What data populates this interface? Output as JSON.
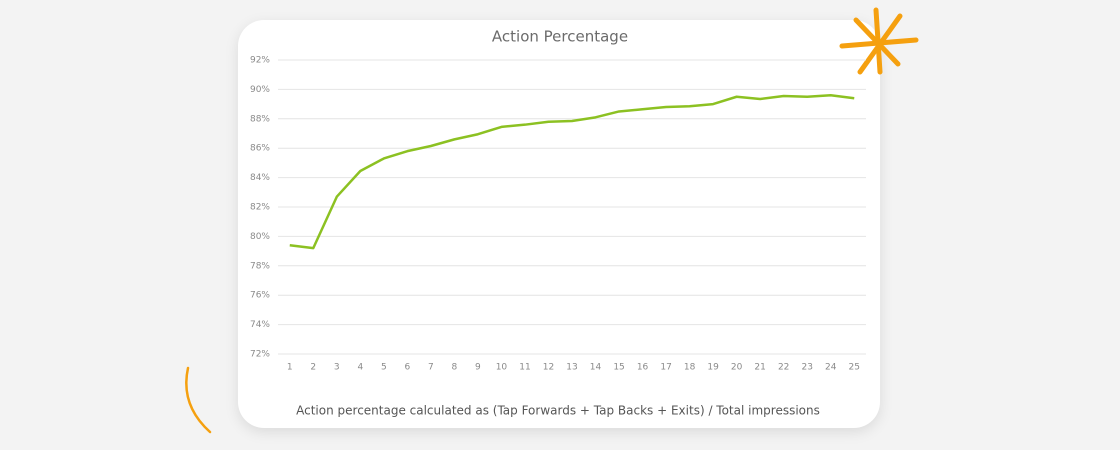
{
  "chart_data": {
    "type": "line",
    "title": "Action Percentage",
    "caption": "Action percentage calculated as (Tap Forwards + Tap Backs + Exits) / Total impressions",
    "categories": [
      "1",
      "2",
      "3",
      "4",
      "5",
      "6",
      "7",
      "8",
      "9",
      "10",
      "11",
      "12",
      "13",
      "14",
      "15",
      "16",
      "17",
      "18",
      "19",
      "20",
      "21",
      "22",
      "23",
      "24",
      "25"
    ],
    "values": [
      79.4,
      79.2,
      82.7,
      84.45,
      85.3,
      85.8,
      86.15,
      86.6,
      86.95,
      87.45,
      87.6,
      87.8,
      87.85,
      88.1,
      88.5,
      88.65,
      88.8,
      88.85,
      89.0,
      89.5,
      89.35,
      89.55,
      89.5,
      89.6,
      89.4
    ],
    "color": "#8cc122",
    "ylim": [
      72,
      92
    ],
    "yticks": [
      {
        "value": 72,
        "label": "72%"
      },
      {
        "value": 74,
        "label": "74%"
      },
      {
        "value": 76,
        "label": "76%"
      },
      {
        "value": 78,
        "label": "78%"
      },
      {
        "value": 80,
        "label": "80%"
      },
      {
        "value": 82,
        "label": "82%"
      },
      {
        "value": 84,
        "label": "84%"
      },
      {
        "value": 86,
        "label": "86%"
      },
      {
        "value": 88,
        "label": "88%"
      },
      {
        "value": 90,
        "label": "90%"
      },
      {
        "value": 92,
        "label": "92%"
      }
    ],
    "grid": true
  }
}
